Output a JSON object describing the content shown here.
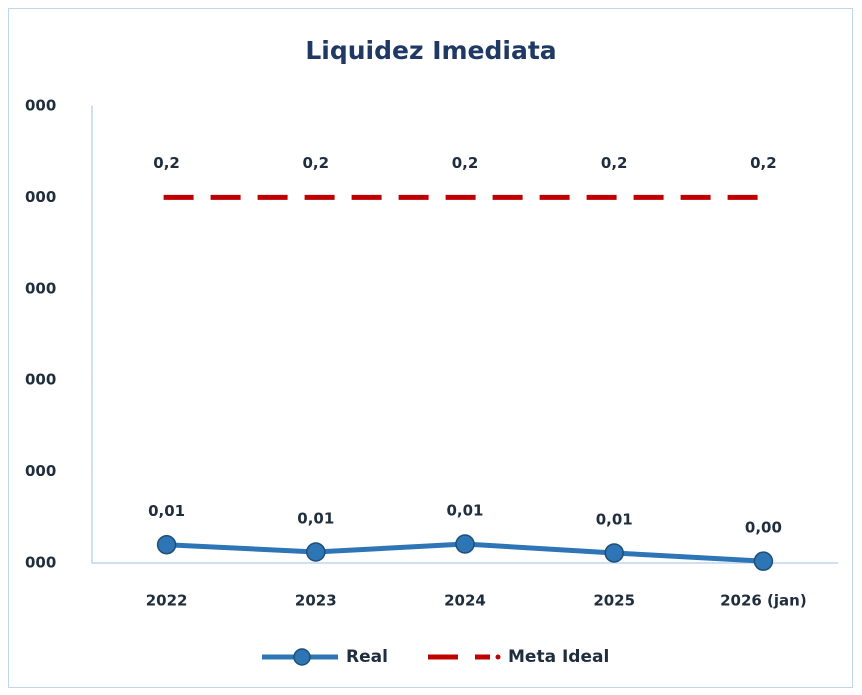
{
  "chart_data": {
    "type": "line",
    "title": "Liquidez Imediata",
    "categories": [
      "2022",
      "2023",
      "2024",
      "2025",
      "2026 (jan)"
    ],
    "series": [
      {
        "name": "Real",
        "color": "#2e75b6",
        "values": [
          0.01,
          0.006,
          0.0104,
          0.0055,
          0.001
        ],
        "value_labels": [
          "0,01",
          "0,01",
          "0,01",
          "0,01",
          "0,00"
        ],
        "marker": true,
        "dashed": false
      },
      {
        "name": "Meta Ideal",
        "color": "#c00000",
        "values": [
          0.2,
          0.2,
          0.2,
          0.2,
          0.2
        ],
        "value_labels": [
          "0,2",
          "0,2",
          "0,2",
          "0,2",
          "0,2"
        ],
        "marker": false,
        "dashed": true
      }
    ],
    "ylim": [
      0,
      0.25
    ],
    "yticks": [
      {
        "value": 0,
        "label": "000"
      },
      {
        "value": 0.05,
        "label": "000"
      },
      {
        "value": 0.1,
        "label": "000"
      },
      {
        "value": 0.15,
        "label": "000"
      },
      {
        "value": 0.2,
        "label": "000"
      },
      {
        "value": 0.25,
        "label": "000"
      }
    ],
    "legend": "bottom"
  }
}
